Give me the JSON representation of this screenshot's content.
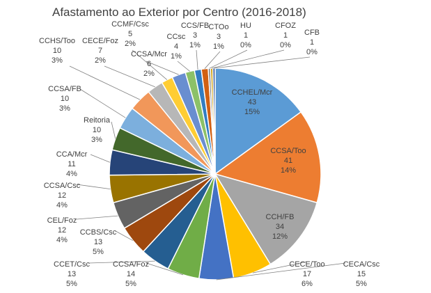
{
  "chart_data": {
    "type": "pie",
    "title": "Afastamento ao Exterior  por Centro (2016-2018)",
    "slices": [
      {
        "label": "CCHEL/Mcr",
        "value": 43,
        "percent": "15%",
        "color": "#5b9bd5"
      },
      {
        "label": "CCSA/Too",
        "value": 41,
        "percent": "14%",
        "color": "#ed7d31"
      },
      {
        "label": "CCH/FB",
        "value": 34,
        "percent": "12%",
        "color": "#a5a5a5"
      },
      {
        "label": "CECE/Too",
        "value": 17,
        "percent": "6%",
        "color": "#ffc000"
      },
      {
        "label": "CECA/Csc",
        "value": 15,
        "percent": "5%",
        "color": "#4472c4"
      },
      {
        "label": "CCSA/Foz",
        "value": 14,
        "percent": "5%",
        "color": "#70ad47"
      },
      {
        "label": "CCET/Csc",
        "value": 13,
        "percent": "5%",
        "color": "#255e91"
      },
      {
        "label": "CCBS/Csc",
        "value": 13,
        "percent": "5%",
        "color": "#9e480e"
      },
      {
        "label": "CEL/Foz",
        "value": 12,
        "percent": "4%",
        "color": "#636363"
      },
      {
        "label": "CCSA/Csc",
        "value": 12,
        "percent": "4%",
        "color": "#997300"
      },
      {
        "label": "CCA/Mcr",
        "value": 11,
        "percent": "4%",
        "color": "#264478"
      },
      {
        "label": "Reitoria",
        "value": 10,
        "percent": "3%",
        "color": "#43682b"
      },
      {
        "label": "CCSA/FB",
        "value": 10,
        "percent": "3%",
        "color": "#7cafdd"
      },
      {
        "label": "CCHS/Too",
        "value": 10,
        "percent": "3%",
        "color": "#f1975a"
      },
      {
        "label": "CECE/Foz",
        "value": 7,
        "percent": "2%",
        "color": "#b7b7b7"
      },
      {
        "label": "CCMF/Csc",
        "value": 5,
        "percent": "2%",
        "color": "#ffcd33"
      },
      {
        "label": "CCSA/Mcr",
        "value": 6,
        "percent": "2%",
        "color": "#698ed0"
      },
      {
        "label": "CCsc",
        "value": 4,
        "percent": "1%",
        "color": "#8cc168"
      },
      {
        "label": "CCS/FB",
        "value": 3,
        "percent": "1%",
        "color": "#327dc2"
      },
      {
        "label": "CTOo",
        "value": 3,
        "percent": "1%",
        "color": "#d26012"
      },
      {
        "label": "HU",
        "value": 1,
        "percent": "0%",
        "color": "#848484"
      },
      {
        "label": "CFOZ",
        "value": 1,
        "percent": "0%",
        "color": "#cc9a00"
      },
      {
        "label": "CFB",
        "value": 1,
        "percent": "0%",
        "color": "#335aa1"
      }
    ]
  }
}
